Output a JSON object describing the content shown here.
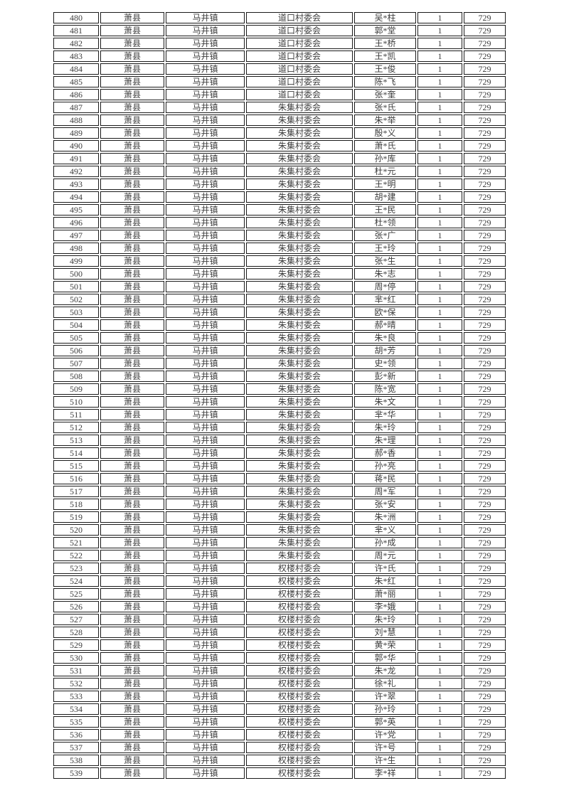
{
  "page": {
    "background_color": "#ffffff",
    "border_color": "#1a1a1a",
    "text_color": "#3d3d3d"
  },
  "table": {
    "rows": [
      [
        "480",
        "萧县",
        "马井镇",
        "道口村委会",
        "吴*柱",
        "1",
        "729"
      ],
      [
        "481",
        "萧县",
        "马井镇",
        "道口村委会",
        "郭*堂",
        "1",
        "729"
      ],
      [
        "482",
        "萧县",
        "马井镇",
        "道口村委会",
        "王*桥",
        "1",
        "729"
      ],
      [
        "483",
        "萧县",
        "马井镇",
        "道口村委会",
        "王*凯",
        "1",
        "729"
      ],
      [
        "484",
        "萧县",
        "马井镇",
        "道口村委会",
        "王*俊",
        "1",
        "729"
      ],
      [
        "485",
        "萧县",
        "马井镇",
        "道口村委会",
        "陈*飞",
        "1",
        "729"
      ],
      [
        "486",
        "萧县",
        "马井镇",
        "道口村委会",
        "张*奎",
        "1",
        "729"
      ],
      [
        "487",
        "萧县",
        "马井镇",
        "朱集村委会",
        "张*氏",
        "1",
        "729"
      ],
      [
        "488",
        "萧县",
        "马井镇",
        "朱集村委会",
        "朱*举",
        "1",
        "729"
      ],
      [
        "489",
        "萧县",
        "马井镇",
        "朱集村委会",
        "殷*义",
        "1",
        "729"
      ],
      [
        "490",
        "萧县",
        "马井镇",
        "朱集村委会",
        "萧*氏",
        "1",
        "729"
      ],
      [
        "491",
        "萧县",
        "马井镇",
        "朱集村委会",
        "孙*库",
        "1",
        "729"
      ],
      [
        "492",
        "萧县",
        "马井镇",
        "朱集村委会",
        "杜*元",
        "1",
        "729"
      ],
      [
        "493",
        "萧县",
        "马井镇",
        "朱集村委会",
        "王*明",
        "1",
        "729"
      ],
      [
        "494",
        "萧县",
        "马井镇",
        "朱集村委会",
        "胡*建",
        "1",
        "729"
      ],
      [
        "495",
        "萧县",
        "马井镇",
        "朱集村委会",
        "王*民",
        "1",
        "729"
      ],
      [
        "496",
        "萧县",
        "马井镇",
        "朱集村委会",
        "杜*领",
        "1",
        "729"
      ],
      [
        "497",
        "萧县",
        "马井镇",
        "朱集村委会",
        "张*广",
        "1",
        "729"
      ],
      [
        "498",
        "萧县",
        "马井镇",
        "朱集村委会",
        "王*玲",
        "1",
        "729"
      ],
      [
        "499",
        "萧县",
        "马井镇",
        "朱集村委会",
        "张*生",
        "1",
        "729"
      ],
      [
        "500",
        "萧县",
        "马井镇",
        "朱集村委会",
        "朱*志",
        "1",
        "729"
      ],
      [
        "501",
        "萧县",
        "马井镇",
        "朱集村委会",
        "周*停",
        "1",
        "729"
      ],
      [
        "502",
        "萧县",
        "马井镇",
        "朱集村委会",
        "芈*红",
        "1",
        "729"
      ],
      [
        "503",
        "萧县",
        "马井镇",
        "朱集村委会",
        "欧*保",
        "1",
        "729"
      ],
      [
        "504",
        "萧县",
        "马井镇",
        "朱集村委会",
        "郝*晴",
        "1",
        "729"
      ],
      [
        "505",
        "萧县",
        "马井镇",
        "朱集村委会",
        "朱*良",
        "1",
        "729"
      ],
      [
        "506",
        "萧县",
        "马井镇",
        "朱集村委会",
        "胡*芳",
        "1",
        "729"
      ],
      [
        "507",
        "萧县",
        "马井镇",
        "朱集村委会",
        "史*领",
        "1",
        "729"
      ],
      [
        "508",
        "萧县",
        "马井镇",
        "朱集村委会",
        "彭*新",
        "1",
        "729"
      ],
      [
        "509",
        "萧县",
        "马井镇",
        "朱集村委会",
        "陈*宽",
        "1",
        "729"
      ],
      [
        "510",
        "萧县",
        "马井镇",
        "朱集村委会",
        "朱*文",
        "1",
        "729"
      ],
      [
        "511",
        "萧县",
        "马井镇",
        "朱集村委会",
        "芈*华",
        "1",
        "729"
      ],
      [
        "512",
        "萧县",
        "马井镇",
        "朱集村委会",
        "朱*玲",
        "1",
        "729"
      ],
      [
        "513",
        "萧县",
        "马井镇",
        "朱集村委会",
        "朱*理",
        "1",
        "729"
      ],
      [
        "514",
        "萧县",
        "马井镇",
        "朱集村委会",
        "郝*香",
        "1",
        "729"
      ],
      [
        "515",
        "萧县",
        "马井镇",
        "朱集村委会",
        "孙*亮",
        "1",
        "729"
      ],
      [
        "516",
        "萧县",
        "马井镇",
        "朱集村委会",
        "蒋*民",
        "1",
        "729"
      ],
      [
        "517",
        "萧县",
        "马井镇",
        "朱集村委会",
        "周*军",
        "1",
        "729"
      ],
      [
        "518",
        "萧县",
        "马井镇",
        "朱集村委会",
        "张*安",
        "1",
        "729"
      ],
      [
        "519",
        "萧县",
        "马井镇",
        "朱集村委会",
        "朱*洲",
        "1",
        "729"
      ],
      [
        "520",
        "萧县",
        "马井镇",
        "朱集村委会",
        "芈*义",
        "1",
        "729"
      ],
      [
        "521",
        "萧县",
        "马井镇",
        "朱集村委会",
        "孙*成",
        "1",
        "729"
      ],
      [
        "522",
        "萧县",
        "马井镇",
        "朱集村委会",
        "周*元",
        "1",
        "729"
      ],
      [
        "523",
        "萧县",
        "马井镇",
        "权楼村委会",
        "许*氏",
        "1",
        "729"
      ],
      [
        "524",
        "萧县",
        "马井镇",
        "权楼村委会",
        "朱*红",
        "1",
        "729"
      ],
      [
        "525",
        "萧县",
        "马井镇",
        "权楼村委会",
        "萧*丽",
        "1",
        "729"
      ],
      [
        "526",
        "萧县",
        "马井镇",
        "权楼村委会",
        "李*娥",
        "1",
        "729"
      ],
      [
        "527",
        "萧县",
        "马井镇",
        "权楼村委会",
        "朱*玲",
        "1",
        "729"
      ],
      [
        "528",
        "萧县",
        "马井镇",
        "权楼村委会",
        "刘*慧",
        "1",
        "729"
      ],
      [
        "529",
        "萧县",
        "马井镇",
        "权楼村委会",
        "黄*荣",
        "1",
        "729"
      ],
      [
        "530",
        "萧县",
        "马井镇",
        "权楼村委会",
        "郭*华",
        "1",
        "729"
      ],
      [
        "531",
        "萧县",
        "马井镇",
        "权楼村委会",
        "朱*龙",
        "1",
        "729"
      ],
      [
        "532",
        "萧县",
        "马井镇",
        "权楼村委会",
        "徐*礼",
        "1",
        "729"
      ],
      [
        "533",
        "萧县",
        "马井镇",
        "权楼村委会",
        "许*翠",
        "1",
        "729"
      ],
      [
        "534",
        "萧县",
        "马井镇",
        "权楼村委会",
        "孙*玲",
        "1",
        "729"
      ],
      [
        "535",
        "萧县",
        "马井镇",
        "权楼村委会",
        "郭*英",
        "1",
        "729"
      ],
      [
        "536",
        "萧县",
        "马井镇",
        "权楼村委会",
        "许*党",
        "1",
        "729"
      ],
      [
        "537",
        "萧县",
        "马井镇",
        "权楼村委会",
        "许*号",
        "1",
        "729"
      ],
      [
        "538",
        "萧县",
        "马井镇",
        "权楼村委会",
        "许*生",
        "1",
        "729"
      ],
      [
        "539",
        "萧县",
        "马井镇",
        "权楼村委会",
        "李*祥",
        "1",
        "729"
      ]
    ]
  }
}
